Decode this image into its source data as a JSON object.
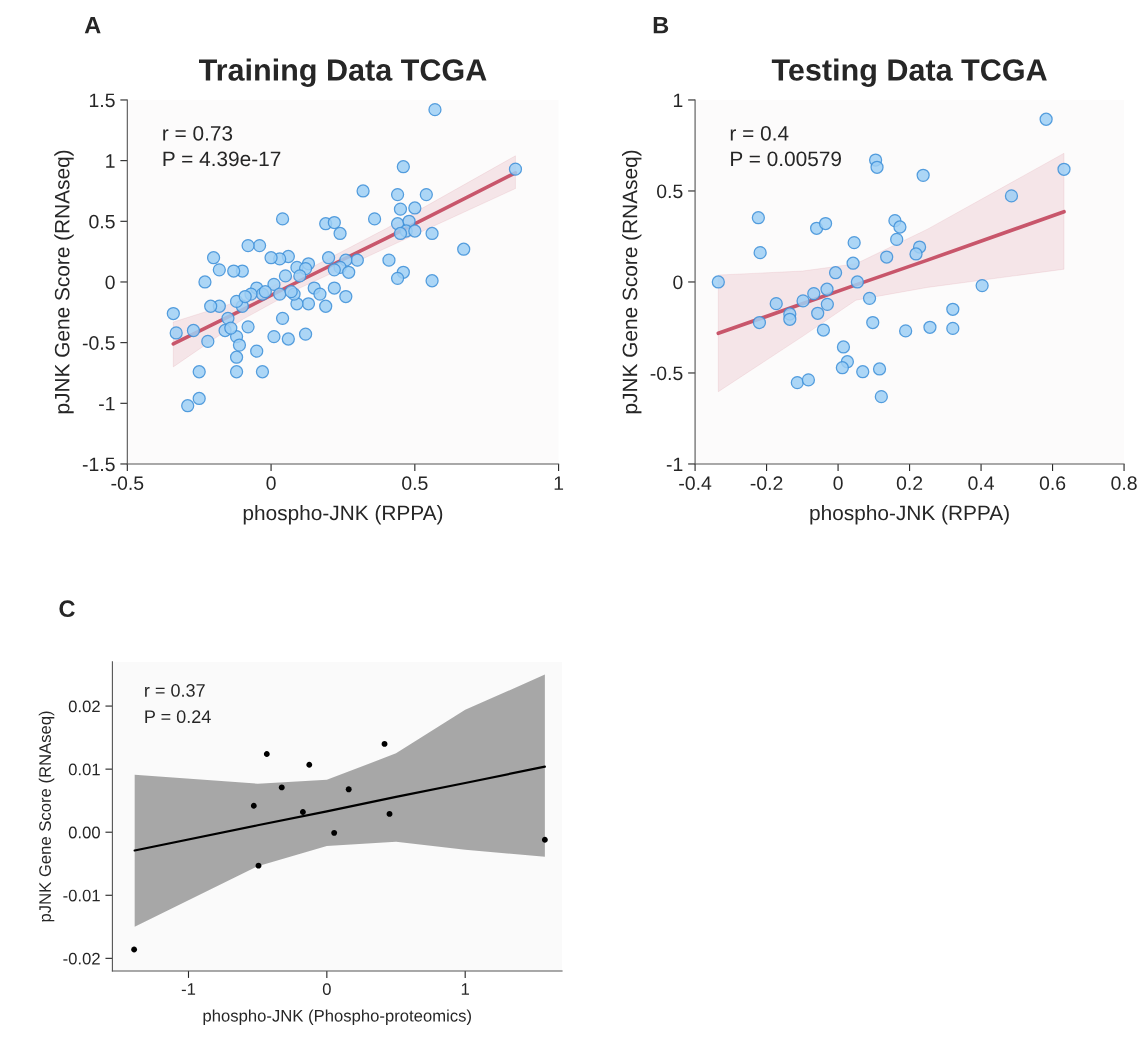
{
  "chart_data": [
    {
      "type": "scatter",
      "title": "Training Data TCGA",
      "xlabel": "phospho-JNK (RPPA)",
      "ylabel": "pJNK Gene Score (RNAseq)",
      "annotations": [
        "A",
        "r = 0.73",
        "P = 4.39e-17"
      ],
      "xlim": [
        -0.5,
        1
      ],
      "xticks": [
        -0.5,
        0,
        0.5,
        1
      ],
      "ylim": [
        -1.5,
        1.5
      ],
      "yticks": [
        -1.5,
        -1,
        -0.5,
        0,
        0.5,
        1,
        1.5
      ],
      "grid": false,
      "legend": false,
      "series": [
        {
          "marker": "circle",
          "color": "#9dcff5",
          "x": [
            0.57,
            0.85,
            0.46,
            0.44,
            0.54,
            0.32,
            0.45,
            0.5,
            0.36,
            0.04,
            0.44,
            0.48,
            0.19,
            0.22,
            0.47,
            0.5,
            0.45,
            0.56,
            0.24,
            0.41,
            0.67,
            0.46,
            0.44,
            0.56,
            0.3,
            0.26,
            0.24,
            0.27,
            0.22,
            0.13,
            0.2,
            0.06,
            0.03,
            0.0,
            -0.04,
            -0.08,
            -0.1,
            -0.13,
            -0.2,
            -0.23,
            -0.18,
            -0.05,
            -0.03,
            0.01,
            0.05,
            0.09,
            0.12,
            0.1,
            0.15,
            0.17,
            0.19,
            0.22,
            0.26,
            0.13,
            0.09,
            0.08,
            0.12,
            0.04,
            0.01,
            0.06,
            -0.05,
            -0.08,
            -0.1,
            -0.12,
            -0.16,
            -0.18,
            -0.21,
            -0.22,
            -0.27,
            -0.33,
            -0.34,
            -0.12,
            -0.11,
            -0.12,
            -0.12,
            -0.03,
            -0.25,
            -0.25,
            -0.29,
            -0.15,
            -0.07,
            -0.02,
            0.03,
            0.07,
            -0.14,
            -0.09
          ],
          "values": [
            1.42,
            0.93,
            0.95,
            0.72,
            0.72,
            0.75,
            0.6,
            0.61,
            0.52,
            0.52,
            0.48,
            0.5,
            0.48,
            0.49,
            0.42,
            0.42,
            0.4,
            0.4,
            0.4,
            0.18,
            0.27,
            0.08,
            0.03,
            0.01,
            0.18,
            0.18,
            0.12,
            0.08,
            0.1,
            0.15,
            0.2,
            0.21,
            0.19,
            0.2,
            0.3,
            0.3,
            0.09,
            0.09,
            0.2,
            0.0,
            0.1,
            -0.05,
            -0.1,
            -0.02,
            0.05,
            0.12,
            0.11,
            0.05,
            -0.05,
            -0.1,
            -0.2,
            -0.05,
            -0.12,
            -0.18,
            -0.18,
            -0.1,
            -0.43,
            -0.3,
            -0.45,
            -0.47,
            -0.57,
            -0.37,
            -0.2,
            -0.16,
            -0.4,
            -0.2,
            -0.2,
            -0.49,
            -0.4,
            -0.42,
            -0.26,
            -0.45,
            -0.52,
            -0.62,
            -0.74,
            -0.74,
            -0.74,
            -0.96,
            -1.02,
            -0.3,
            -0.1,
            -0.08,
            -0.1,
            -0.08,
            -0.38,
            -0.12
          ]
        },
        {
          "type": "line",
          "color": "#c8566b",
          "x": [
            -0.34,
            -0.1,
            0.1,
            0.4,
            0.85
          ],
          "values": [
            -0.51,
            -0.23,
            0.01,
            0.36,
            0.9
          ],
          "lower": [
            -0.7,
            -0.31,
            -0.05,
            0.28,
            0.77
          ],
          "upper": [
            -0.33,
            -0.15,
            0.07,
            0.44,
            1.04
          ]
        }
      ]
    },
    {
      "type": "scatter",
      "title": "Testing Data TCGA",
      "xlabel": "phospho-JNK (RPPA)",
      "ylabel": "pJNK Gene Score (RNAseq)",
      "annotations": [
        "B",
        "r = 0.4",
        "P = 0.00579"
      ],
      "xlim": [
        -0.4,
        0.8
      ],
      "xticks": [
        -0.4,
        -0.2,
        0,
        0.2,
        0.4,
        0.6,
        0.8
      ],
      "ylim": [
        -1,
        1
      ],
      "yticks": [
        -1,
        -0.5,
        0,
        0.5,
        1
      ],
      "grid": false,
      "legend": false,
      "series": [
        {
          "marker": "circle",
          "color": "#9dcff5",
          "x": [
            -0.335,
            0.582,
            0.632,
            0.485,
            0.105,
            0.109,
            0.238,
            -0.223,
            -0.218,
            -0.06,
            -0.035,
            0.045,
            0.159,
            0.173,
            0.164,
            0.228,
            0.218,
            0.136,
            0.042,
            -0.007,
            0.054,
            0.403,
            -0.031,
            -0.068,
            -0.098,
            -0.173,
            -0.03,
            0.088,
            -0.135,
            -0.135,
            -0.057,
            -0.22,
            -0.041,
            0.097,
            0.189,
            0.257,
            0.321,
            0.321,
            0.015,
            0.026,
            0.012,
            0.069,
            0.116,
            -0.114,
            -0.083,
            0.121
          ],
          "values": [
            0.0,
            0.894,
            0.619,
            0.473,
            0.67,
            0.63,
            0.586,
            0.353,
            0.161,
            0.295,
            0.321,
            0.216,
            0.337,
            0.302,
            0.234,
            0.192,
            0.154,
            0.137,
            0.103,
            0.051,
            0.0,
            -0.02,
            -0.04,
            -0.064,
            -0.104,
            -0.119,
            -0.123,
            -0.09,
            -0.176,
            -0.205,
            -0.172,
            -0.223,
            -0.264,
            -0.223,
            -0.269,
            -0.249,
            -0.15,
            -0.255,
            -0.357,
            -0.438,
            -0.471,
            -0.493,
            -0.478,
            -0.553,
            -0.538,
            -0.63
          ]
        },
        {
          "type": "line",
          "color": "#c8566b",
          "x": [
            -0.335,
            -0.1,
            0.05,
            0.25,
            0.632
          ],
          "values": [
            -0.282,
            -0.12,
            -0.016,
            0.12,
            0.386
          ],
          "lower": [
            -0.603,
            -0.3,
            -0.1,
            -0.03,
            0.07
          ],
          "upper": [
            0.038,
            0.06,
            0.1,
            0.29,
            0.707
          ]
        }
      ]
    },
    {
      "type": "scatter",
      "xlabel": "phospho-JNK (Phospho-proteomics)",
      "ylabel": "pJNK Gene Score (RNAseq)",
      "annotations": [
        "C",
        "r = 0.37",
        "P = 0.24"
      ],
      "xlim": [
        -1.55,
        1.7
      ],
      "xticks": [
        -1,
        0,
        1
      ],
      "ylim": [
        -0.022,
        0.027
      ],
      "yticks": [
        {
          "value": -0.02,
          "label": "-0.02"
        },
        {
          "value": -0.01,
          "label": "-0.01"
        },
        {
          "value": 0,
          "label": "0.00"
        },
        {
          "value": 0.01,
          "label": "0.01"
        },
        {
          "value": 0.02,
          "label": "0.02"
        }
      ],
      "grid": false,
      "legend": false,
      "series": [
        {
          "marker": "circle",
          "color": "#000000",
          "x": [
            -1.393,
            -0.434,
            -0.127,
            0.417,
            -0.326,
            0.158,
            -0.528,
            -0.173,
            0.453,
            0.053,
            1.576,
            -0.494
          ],
          "values": [
            -0.0186,
            0.0124,
            0.0107,
            0.014,
            0.0071,
            0.0068,
            0.0042,
            0.0032,
            0.0029,
            -0.0001,
            -0.0012,
            -0.0053
          ]
        },
        {
          "type": "line",
          "color": "#000000",
          "x": [
            -1.389,
            -0.5,
            0,
            0.5,
            1.0,
            1.576
          ],
          "values": [
            -0.0029,
            0.0011,
            0.0033,
            0.0056,
            0.0078,
            0.0104
          ],
          "lower": [
            -0.015,
            -0.0054,
            -0.0022,
            -0.0015,
            -0.0028,
            -0.0039
          ],
          "upper": [
            0.0091,
            0.0077,
            0.0083,
            0.0125,
            0.0194,
            0.025
          ]
        }
      ]
    }
  ]
}
